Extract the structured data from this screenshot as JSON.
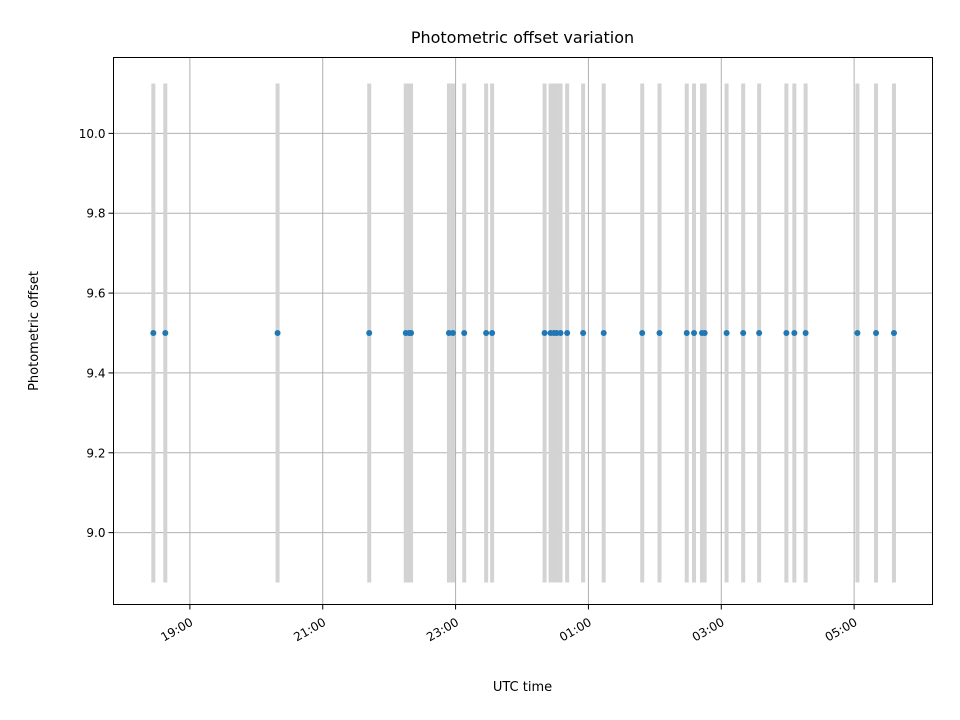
{
  "chart_data": {
    "type": "scatter",
    "title": "Photometric offset variation",
    "xlabel": "UTC time",
    "ylabel": "Photometric offset",
    "x_unit": "hours UTC (values > 24 are the following day)",
    "xlim": [
      17.85,
      30.18
    ],
    "ylim": [
      8.82,
      10.19
    ],
    "x_ticks": [
      {
        "value": 19,
        "label": "19:00"
      },
      {
        "value": 21,
        "label": "21:00"
      },
      {
        "value": 23,
        "label": "23:00"
      },
      {
        "value": 25,
        "label": "01:00"
      },
      {
        "value": 27,
        "label": "03:00"
      },
      {
        "value": 29,
        "label": "05:00"
      }
    ],
    "y_ticks": [
      {
        "value": 9.0,
        "label": "9.0"
      },
      {
        "value": 9.2,
        "label": "9.2"
      },
      {
        "value": 9.4,
        "label": "9.4"
      },
      {
        "value": 9.6,
        "label": "9.6"
      },
      {
        "value": 9.8,
        "label": "9.8"
      },
      {
        "value": 10.0,
        "label": "10.0"
      }
    ],
    "grid": true,
    "x_tick_rotation": 30,
    "band_range": [
      8.875,
      10.125
    ],
    "band_color": "#d3d3d3",
    "point_color": "#1f77b4",
    "series": [
      {
        "x": [
          18.45,
          18.63,
          20.32,
          21.7,
          22.25,
          22.3,
          22.33,
          22.9,
          22.96,
          23.13,
          23.46,
          23.55,
          24.34,
          24.43,
          24.48,
          24.52,
          24.58,
          24.68,
          24.92,
          25.23,
          25.81,
          26.07,
          26.48,
          26.59,
          26.71,
          26.75,
          27.08,
          27.33,
          27.57,
          27.98,
          28.1,
          28.27,
          29.05,
          29.33,
          29.6
        ],
        "y": [
          9.5,
          9.5,
          9.5,
          9.5,
          9.5,
          9.5,
          9.5,
          9.5,
          9.5,
          9.5,
          9.5,
          9.5,
          9.5,
          9.5,
          9.5,
          9.5,
          9.5,
          9.5,
          9.5,
          9.5,
          9.5,
          9.5,
          9.5,
          9.5,
          9.5,
          9.5,
          9.5,
          9.5,
          9.5,
          9.5,
          9.5,
          9.5,
          9.5,
          9.5,
          9.5
        ]
      }
    ]
  }
}
